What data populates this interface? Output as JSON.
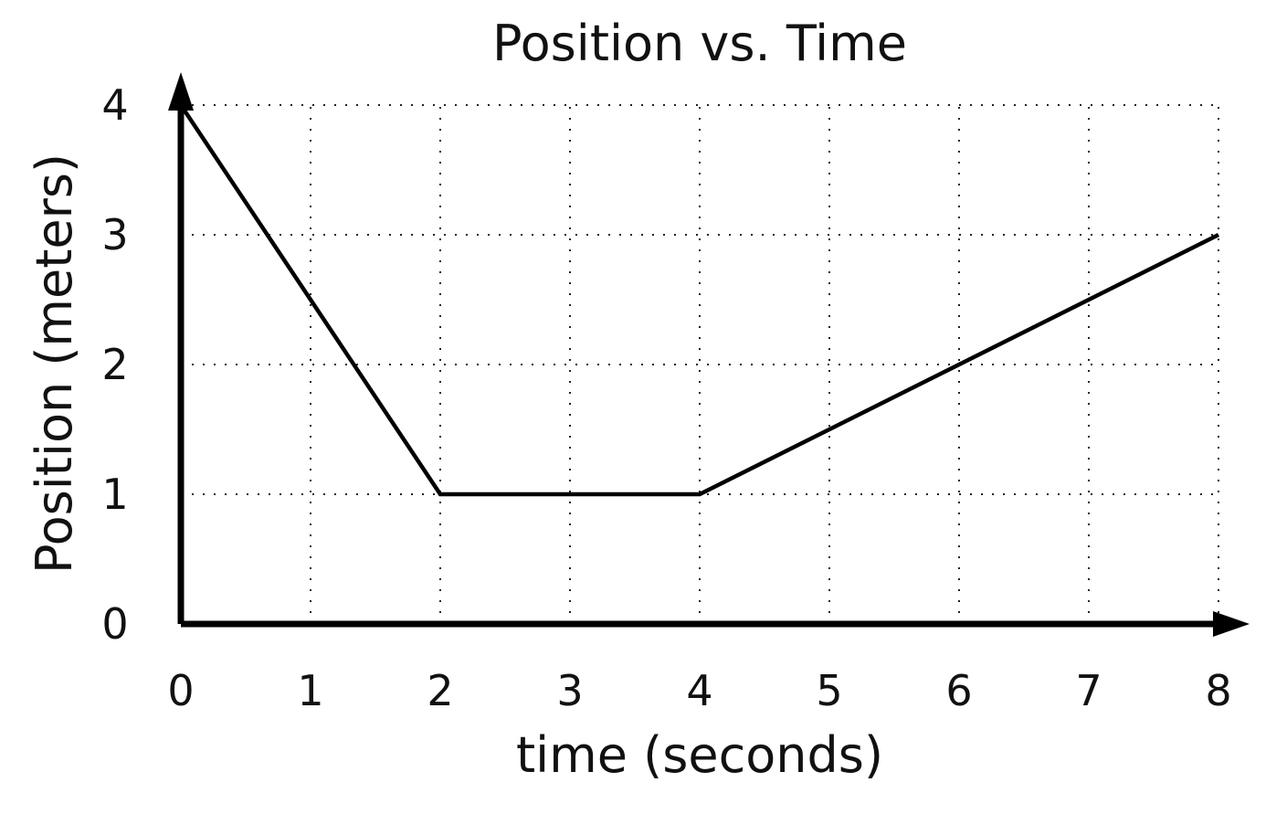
{
  "chart_data": {
    "type": "line",
    "title": "Position vs. Time",
    "xlabel": "time (seconds)",
    "ylabel": "Position (meters)",
    "xlim": [
      0,
      8
    ],
    "ylim": [
      0,
      4
    ],
    "x_ticks": [
      "0",
      "1",
      "2",
      "3",
      "4",
      "5",
      "6",
      "7",
      "8"
    ],
    "y_ticks": [
      "0",
      "1",
      "2",
      "3",
      "4"
    ],
    "grid": true,
    "grid_style": "dotted",
    "series": [
      {
        "x": [
          0,
          2,
          4,
          8
        ],
        "y": [
          4,
          1,
          1,
          3
        ],
        "color": "#000000"
      }
    ]
  }
}
